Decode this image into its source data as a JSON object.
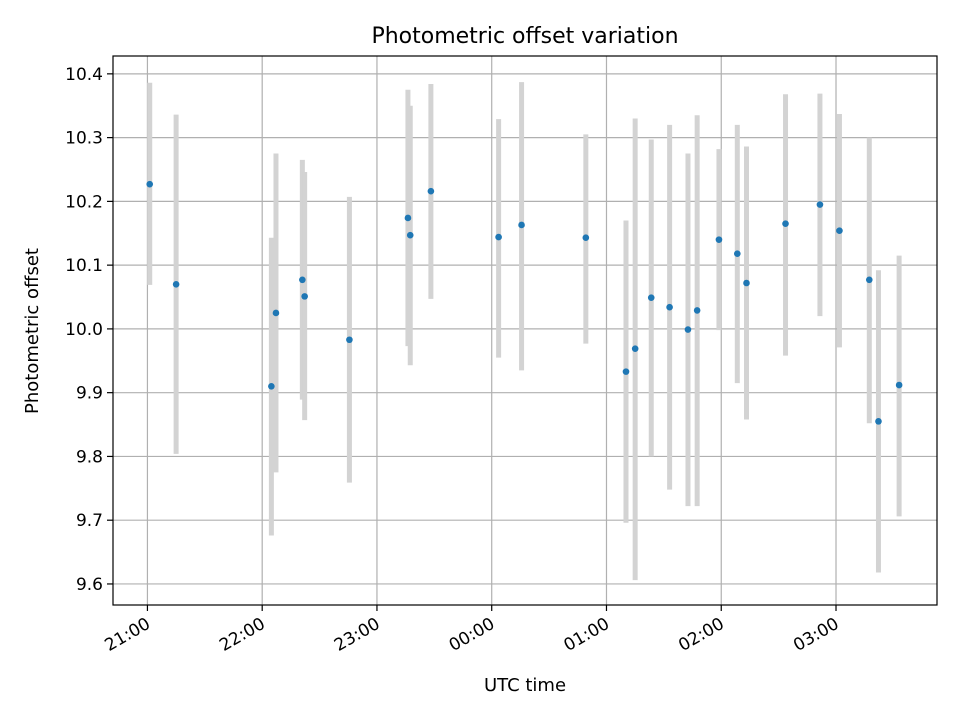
{
  "chart_data": {
    "type": "scatter",
    "title": "Photometric offset variation",
    "xlabel": "UTC time",
    "ylabel": "Photometric offset",
    "x_unit": "hours since 21:00 UTC",
    "xlim": [
      -0.3,
      6.88
    ],
    "ylim": [
      9.567,
      10.428
    ],
    "grid": true,
    "colors": {
      "point": "#1f77b4",
      "errorbar": "#d3d3d3",
      "grid": "#b0b0b0",
      "axis": "#000000"
    },
    "x_ticks": [
      {
        "value": 0,
        "label": "21:00"
      },
      {
        "value": 1,
        "label": "22:00"
      },
      {
        "value": 2,
        "label": "23:00"
      },
      {
        "value": 3,
        "label": "00:00"
      },
      {
        "value": 4,
        "label": "01:00"
      },
      {
        "value": 5,
        "label": "02:00"
      },
      {
        "value": 6,
        "label": "03:00"
      }
    ],
    "y_ticks": [
      {
        "value": 9.6,
        "label": "9.6"
      },
      {
        "value": 9.7,
        "label": "9.7"
      },
      {
        "value": 9.8,
        "label": "9.8"
      },
      {
        "value": 9.9,
        "label": "9.9"
      },
      {
        "value": 10.0,
        "label": "10.0"
      },
      {
        "value": 10.1,
        "label": "10.1"
      },
      {
        "value": 10.2,
        "label": "10.2"
      },
      {
        "value": 10.3,
        "label": "10.3"
      },
      {
        "value": 10.4,
        "label": "10.4"
      }
    ],
    "series": [
      {
        "points": [
          {
            "x": 0.02,
            "y": 10.227,
            "low": 10.069,
            "high": 10.386
          },
          {
            "x": 0.25,
            "y": 10.07,
            "low": 9.804,
            "high": 10.336
          },
          {
            "x": 1.08,
            "y": 9.91,
            "low": 9.676,
            "high": 10.143
          },
          {
            "x": 1.12,
            "y": 10.025,
            "low": 9.775,
            "high": 10.275
          },
          {
            "x": 1.35,
            "y": 10.077,
            "low": 9.889,
            "high": 10.265
          },
          {
            "x": 1.37,
            "y": 10.051,
            "low": 9.857,
            "high": 10.246
          },
          {
            "x": 1.76,
            "y": 9.983,
            "low": 9.759,
            "high": 10.207
          },
          {
            "x": 2.27,
            "y": 10.174,
            "low": 9.973,
            "high": 10.375
          },
          {
            "x": 2.29,
            "y": 10.147,
            "low": 9.943,
            "high": 10.35
          },
          {
            "x": 2.47,
            "y": 10.216,
            "low": 10.047,
            "high": 10.384
          },
          {
            "x": 3.06,
            "y": 10.144,
            "low": 9.955,
            "high": 10.329
          },
          {
            "x": 3.26,
            "y": 10.163,
            "low": 9.935,
            "high": 10.387
          },
          {
            "x": 3.82,
            "y": 10.143,
            "low": 9.977,
            "high": 10.305
          },
          {
            "x": 4.17,
            "y": 9.933,
            "low": 9.696,
            "high": 10.17
          },
          {
            "x": 4.25,
            "y": 9.969,
            "low": 9.606,
            "high": 10.33
          },
          {
            "x": 4.39,
            "y": 10.049,
            "low": 9.8,
            "high": 10.297
          },
          {
            "x": 4.55,
            "y": 10.034,
            "low": 9.748,
            "high": 10.32
          },
          {
            "x": 4.71,
            "y": 9.999,
            "low": 9.722,
            "high": 10.275
          },
          {
            "x": 4.79,
            "y": 10.029,
            "low": 9.722,
            "high": 10.335
          },
          {
            "x": 4.98,
            "y": 10.14,
            "low": 9.998,
            "high": 10.282
          },
          {
            "x": 5.14,
            "y": 10.118,
            "low": 9.915,
            "high": 10.32
          },
          {
            "x": 5.22,
            "y": 10.072,
            "low": 9.858,
            "high": 10.286
          },
          {
            "x": 5.56,
            "y": 10.165,
            "low": 9.958,
            "high": 10.368
          },
          {
            "x": 5.86,
            "y": 10.195,
            "low": 10.02,
            "high": 10.369
          },
          {
            "x": 6.03,
            "y": 10.154,
            "low": 9.971,
            "high": 10.337
          },
          {
            "x": 6.29,
            "y": 10.077,
            "low": 9.852,
            "high": 10.3
          },
          {
            "x": 6.37,
            "y": 9.855,
            "low": 9.618,
            "high": 10.092
          },
          {
            "x": 6.55,
            "y": 9.912,
            "low": 9.706,
            "high": 10.115
          }
        ]
      }
    ]
  }
}
